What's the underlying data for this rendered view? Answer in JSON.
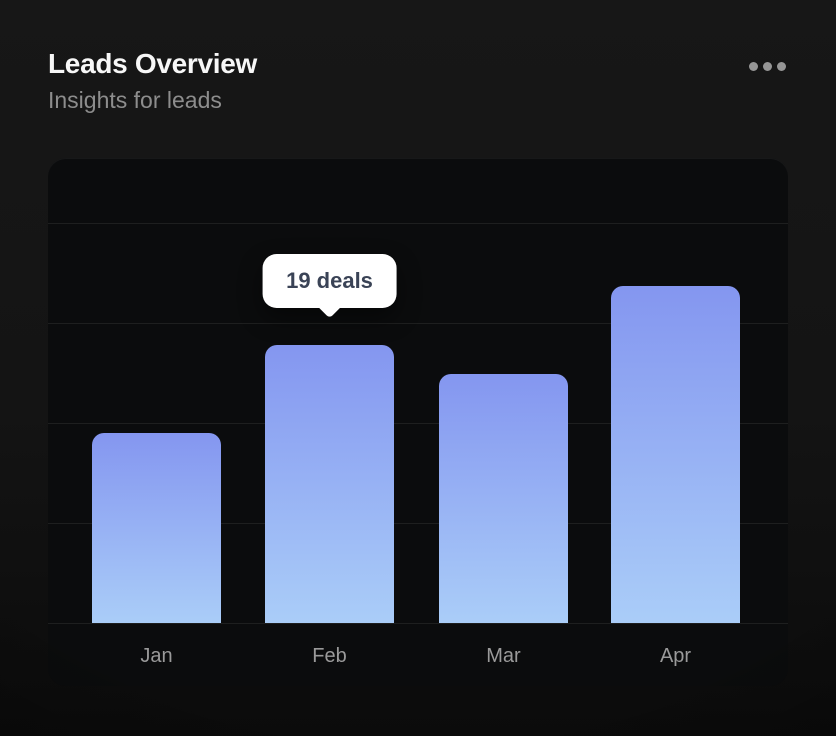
{
  "card": {
    "title": "Leads Overview",
    "subtitle": "Insights for leads",
    "menu_icon": "ellipsis-horizontal-icon"
  },
  "tooltip": {
    "label": "19 deals"
  },
  "chart_data": {
    "type": "bar",
    "title": "Leads Overview",
    "subtitle": "Insights for leads",
    "categories": [
      "Jan",
      "Feb",
      "Mar",
      "Apr"
    ],
    "values": [
      13,
      19,
      17,
      23
    ],
    "unit": "deals",
    "highlighted_category": "Feb",
    "highlight_label": "19 deals",
    "ylim": [
      0,
      32
    ],
    "grid": "horizontal",
    "legend": "none",
    "xlabel": "",
    "ylabel": ""
  },
  "colors": {
    "card_background": "#141414",
    "plot_background": "#0b0c0d",
    "gridline": "rgba(255,255,255,0.08)",
    "bar_gradient_top": "#8496f0",
    "bar_gradient_bottom": "#aacdf8",
    "title_text": "#f7f7f7",
    "subtitle_text": "#8d8d8d",
    "axis_label_text": "#9a9a9a",
    "tooltip_background": "#ffffff",
    "tooltip_text": "#3a4356",
    "menu_dots": "#969696"
  }
}
